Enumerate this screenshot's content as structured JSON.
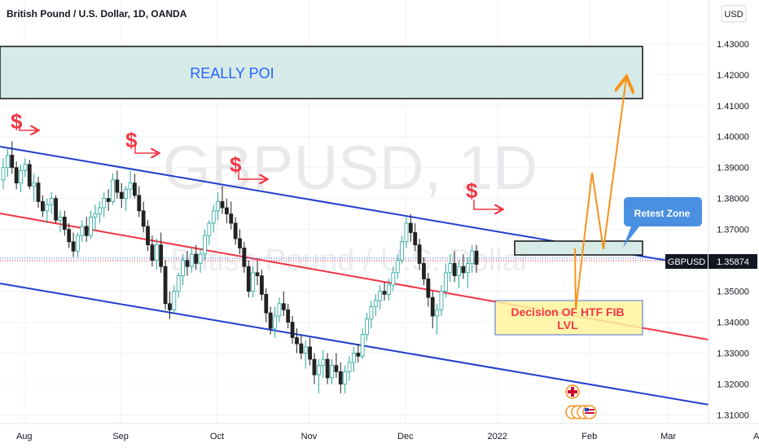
{
  "header": {
    "title": "British Pound / U.S. Dollar, 1D, OANDA"
  },
  "watermark": {
    "symbol": "GBPUSD, 1D",
    "name": "British Pound / U.S. Dollar"
  },
  "currency_button": "USD",
  "price_badge": {
    "symbol": "GBPUSD",
    "value": "1.35874"
  },
  "annotations": {
    "poi_label": "REALLY POI",
    "retest_label": "Retest Zone",
    "fib_label_line1": "Decision OF HTF FIB",
    "fib_label_line2": "LVL",
    "dollar_sign": "$"
  },
  "colors": {
    "up": "#26a69a",
    "down": "#222222",
    "channel": "#1f3fcc",
    "midline": "#f23645",
    "arrow_red": "#f23645",
    "projection": "#f7931a",
    "poi_fill": "#d6ebe8",
    "fib_fill": "#fff59d"
  },
  "chart_data": {
    "type": "candlestick",
    "title": "British Pound / U.S. Dollar, 1D, OANDA",
    "xlabel": "",
    "ylabel": "",
    "y_ticks": [
      "1.43000",
      "1.42000",
      "1.41000",
      "1.40000",
      "1.39000",
      "1.38000",
      "1.37000",
      "1.36000",
      "1.35000",
      "1.34000",
      "1.33000",
      "1.32000",
      "1.31000"
    ],
    "x_ticks": [
      "Aug",
      "Sep",
      "Oct",
      "Nov",
      "Dec",
      "2022",
      "Feb",
      "Mar",
      "Apr"
    ],
    "ylim": [
      1.3088,
      1.4347
    ],
    "last_price": 1.35874,
    "grid": true,
    "series": [
      {
        "ohlc": [
          [
            1.386,
            1.393,
            1.383,
            1.39
          ],
          [
            1.39,
            1.396,
            1.387,
            1.394
          ],
          [
            1.394,
            1.3985,
            1.388,
            1.39
          ],
          [
            1.39,
            1.392,
            1.383,
            1.385
          ],
          [
            1.385,
            1.391,
            1.382,
            1.389
          ],
          [
            1.389,
            1.393,
            1.387,
            1.391
          ],
          [
            1.391,
            1.3925,
            1.383,
            1.384
          ],
          [
            1.384,
            1.388,
            1.379,
            1.385
          ],
          [
            1.385,
            1.387,
            1.377,
            1.379
          ],
          [
            1.379,
            1.381,
            1.374,
            1.376
          ],
          [
            1.376,
            1.38,
            1.372,
            1.378
          ],
          [
            1.378,
            1.382,
            1.375,
            1.38
          ],
          [
            1.38,
            1.381,
            1.372,
            1.373
          ],
          [
            1.373,
            1.376,
            1.369,
            1.374
          ],
          [
            1.374,
            1.376,
            1.368,
            1.37
          ],
          [
            1.37,
            1.372,
            1.364,
            1.366
          ],
          [
            1.366,
            1.369,
            1.361,
            1.363
          ],
          [
            1.363,
            1.369,
            1.361,
            1.368
          ],
          [
            1.368,
            1.373,
            1.366,
            1.371
          ],
          [
            1.371,
            1.374,
            1.366,
            1.368
          ],
          [
            1.368,
            1.376,
            1.367,
            1.374
          ],
          [
            1.374,
            1.378,
            1.37,
            1.375
          ],
          [
            1.375,
            1.379,
            1.372,
            1.377
          ],
          [
            1.377,
            1.382,
            1.374,
            1.38
          ],
          [
            1.38,
            1.383,
            1.376,
            1.379
          ],
          [
            1.379,
            1.388,
            1.378,
            1.386
          ],
          [
            1.386,
            1.389,
            1.38,
            1.382
          ],
          [
            1.382,
            1.385,
            1.377,
            1.38
          ],
          [
            1.38,
            1.384,
            1.376,
            1.383
          ],
          [
            1.383,
            1.389,
            1.38,
            1.385
          ],
          [
            1.385,
            1.388,
            1.38,
            1.381
          ],
          [
            1.381,
            1.384,
            1.374,
            1.376
          ],
          [
            1.376,
            1.379,
            1.369,
            1.371
          ],
          [
            1.371,
            1.373,
            1.363,
            1.365
          ],
          [
            1.365,
            1.368,
            1.358,
            1.36
          ],
          [
            1.36,
            1.367,
            1.357,
            1.365
          ],
          [
            1.365,
            1.369,
            1.356,
            1.358
          ],
          [
            1.358,
            1.36,
            1.344,
            1.346
          ],
          [
            1.346,
            1.35,
            1.341,
            1.344
          ],
          [
            1.344,
            1.352,
            1.343,
            1.35
          ],
          [
            1.35,
            1.356,
            1.348,
            1.355
          ],
          [
            1.355,
            1.362,
            1.352,
            1.36
          ],
          [
            1.36,
            1.363,
            1.355,
            1.358
          ],
          [
            1.358,
            1.364,
            1.356,
            1.362
          ],
          [
            1.362,
            1.365,
            1.357,
            1.359
          ],
          [
            1.359,
            1.364,
            1.356,
            1.362
          ],
          [
            1.362,
            1.37,
            1.36,
            1.368
          ],
          [
            1.368,
            1.373,
            1.365,
            1.372
          ],
          [
            1.372,
            1.378,
            1.369,
            1.376
          ],
          [
            1.376,
            1.382,
            1.373,
            1.379
          ],
          [
            1.379,
            1.384,
            1.375,
            1.377
          ],
          [
            1.377,
            1.38,
            1.372,
            1.375
          ],
          [
            1.375,
            1.379,
            1.37,
            1.372
          ],
          [
            1.372,
            1.374,
            1.365,
            1.367
          ],
          [
            1.367,
            1.37,
            1.362,
            1.364
          ],
          [
            1.364,
            1.366,
            1.356,
            1.358
          ],
          [
            1.358,
            1.36,
            1.348,
            1.35
          ],
          [
            1.35,
            1.358,
            1.348,
            1.356
          ],
          [
            1.356,
            1.36,
            1.352,
            1.355
          ],
          [
            1.355,
            1.357,
            1.347,
            1.349
          ],
          [
            1.349,
            1.351,
            1.34,
            1.343
          ],
          [
            1.343,
            1.345,
            1.336,
            1.338
          ],
          [
            1.338,
            1.345,
            1.335,
            1.342
          ],
          [
            1.342,
            1.348,
            1.34,
            1.346
          ],
          [
            1.346,
            1.35,
            1.342,
            1.344
          ],
          [
            1.344,
            1.346,
            1.338,
            1.34
          ],
          [
            1.34,
            1.342,
            1.333,
            1.335
          ],
          [
            1.335,
            1.338,
            1.33,
            1.333
          ],
          [
            1.333,
            1.336,
            1.328,
            1.33
          ],
          [
            1.33,
            1.334,
            1.325,
            1.332
          ],
          [
            1.332,
            1.335,
            1.326,
            1.328
          ],
          [
            1.328,
            1.33,
            1.32,
            1.323
          ],
          [
            1.323,
            1.328,
            1.317,
            1.326
          ],
          [
            1.326,
            1.331,
            1.322,
            1.328
          ],
          [
            1.328,
            1.33,
            1.32,
            1.322
          ],
          [
            1.322,
            1.328,
            1.32,
            1.326
          ],
          [
            1.326,
            1.33,
            1.322,
            1.324
          ],
          [
            1.324,
            1.327,
            1.317,
            1.32
          ],
          [
            1.32,
            1.326,
            1.317,
            1.324
          ],
          [
            1.324,
            1.329,
            1.321,
            1.327
          ],
          [
            1.327,
            1.332,
            1.324,
            1.33
          ],
          [
            1.33,
            1.333,
            1.327,
            1.329
          ],
          [
            1.329,
            1.338,
            1.328,
            1.336
          ],
          [
            1.336,
            1.343,
            1.334,
            1.341
          ],
          [
            1.341,
            1.347,
            1.338,
            1.345
          ],
          [
            1.345,
            1.349,
            1.342,
            1.347
          ],
          [
            1.347,
            1.352,
            1.344,
            1.35
          ],
          [
            1.35,
            1.353,
            1.347,
            1.349
          ],
          [
            1.349,
            1.354,
            1.347,
            1.352
          ],
          [
            1.352,
            1.358,
            1.35,
            1.356
          ],
          [
            1.356,
            1.362,
            1.354,
            1.36
          ],
          [
            1.36,
            1.368,
            1.359,
            1.366
          ],
          [
            1.366,
            1.374,
            1.364,
            1.372
          ],
          [
            1.372,
            1.375,
            1.366,
            1.369
          ],
          [
            1.369,
            1.372,
            1.363,
            1.365
          ],
          [
            1.365,
            1.367,
            1.357,
            1.359
          ],
          [
            1.359,
            1.361,
            1.352,
            1.354
          ],
          [
            1.354,
            1.356,
            1.345,
            1.348
          ],
          [
            1.348,
            1.35,
            1.338,
            1.342
          ],
          [
            1.342,
            1.346,
            1.336,
            1.344
          ],
          [
            1.344,
            1.352,
            1.342,
            1.35
          ],
          [
            1.35,
            1.359,
            1.348,
            1.356
          ],
          [
            1.356,
            1.362,
            1.353,
            1.359
          ],
          [
            1.359,
            1.363,
            1.353,
            1.355
          ],
          [
            1.355,
            1.36,
            1.351,
            1.358
          ],
          [
            1.358,
            1.362,
            1.354,
            1.356
          ],
          [
            1.356,
            1.361,
            1.351,
            1.359
          ],
          [
            1.359,
            1.365,
            1.356,
            1.363
          ],
          [
            1.363,
            1.365,
            1.356,
            1.3587
          ]
        ]
      }
    ]
  }
}
